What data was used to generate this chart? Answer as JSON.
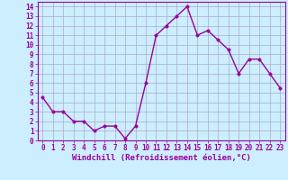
{
  "x": [
    0,
    1,
    2,
    3,
    4,
    5,
    6,
    7,
    8,
    9,
    10,
    11,
    12,
    13,
    14,
    15,
    16,
    17,
    18,
    19,
    20,
    21,
    22,
    23
  ],
  "y": [
    4.5,
    3.0,
    3.0,
    2.0,
    2.0,
    1.0,
    1.5,
    1.5,
    0.2,
    1.5,
    6.0,
    11.0,
    12.0,
    13.0,
    14.0,
    11.0,
    11.5,
    10.5,
    9.5,
    7.0,
    8.5,
    8.5,
    7.0,
    5.5
  ],
  "line_color": "#990099",
  "marker_color": "#990099",
  "bg_color": "#cceeff",
  "grid_color": "#aaaacc",
  "xlabel": "Windchill (Refroidissement éolien,°C)",
  "xlabel_color": "#990099",
  "ylim": [
    0,
    14.5
  ],
  "xlim": [
    -0.5,
    23.5
  ],
  "yticks": [
    0,
    1,
    2,
    3,
    4,
    5,
    6,
    7,
    8,
    9,
    10,
    11,
    12,
    13,
    14
  ],
  "xticks": [
    0,
    1,
    2,
    3,
    4,
    5,
    6,
    7,
    8,
    9,
    10,
    11,
    12,
    13,
    14,
    15,
    16,
    17,
    18,
    19,
    20,
    21,
    22,
    23
  ],
  "tick_color": "#990099",
  "tick_fontsize": 5.5,
  "xlabel_fontsize": 6.5,
  "axis_border_color": "#990099",
  "marker_size": 2.5,
  "line_width": 1.0
}
